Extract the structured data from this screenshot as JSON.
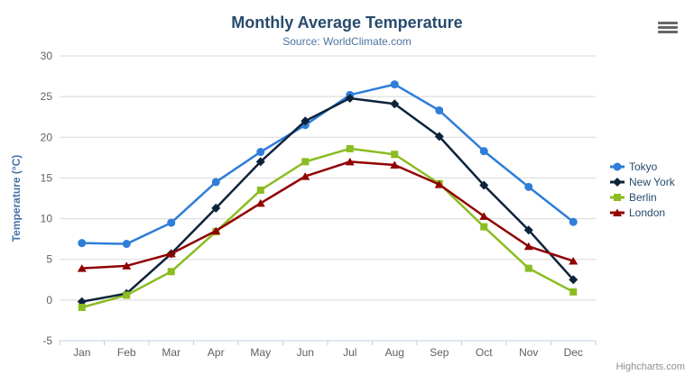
{
  "chart_data": {
    "type": "line",
    "title": "Monthly Average Temperature",
    "subtitle": "Source: WorldClimate.com",
    "categories": [
      "Jan",
      "Feb",
      "Mar",
      "Apr",
      "May",
      "Jun",
      "Jul",
      "Aug",
      "Sep",
      "Oct",
      "Nov",
      "Dec"
    ],
    "xlabel": "",
    "ylabel": "Temperature (°C)",
    "ylim": [
      -5,
      30
    ],
    "ytick_step": 5,
    "grid": true,
    "legend_position": "right-middle",
    "series": [
      {
        "name": "Tokyo",
        "marker": "circle",
        "color": "#2f7ed8",
        "values": [
          7.0,
          6.9,
          9.5,
          14.5,
          18.2,
          21.5,
          25.2,
          26.5,
          23.3,
          18.3,
          13.9,
          9.6
        ]
      },
      {
        "name": "New York",
        "marker": "diamond",
        "color": "#0d233a",
        "values": [
          -0.2,
          0.8,
          5.7,
          11.3,
          17.0,
          22.0,
          24.8,
          24.1,
          20.1,
          14.1,
          8.6,
          2.5
        ]
      },
      {
        "name": "Berlin",
        "marker": "square",
        "color": "#8bbc21",
        "values": [
          -0.9,
          0.6,
          3.5,
          8.4,
          13.5,
          17.0,
          18.6,
          17.9,
          14.3,
          9.0,
          3.9,
          1.0
        ]
      },
      {
        "name": "London",
        "marker": "triangle",
        "color": "#910000",
        "values": [
          3.9,
          4.2,
          5.7,
          8.5,
          11.9,
          15.2,
          17.0,
          16.6,
          14.2,
          10.3,
          6.6,
          4.8
        ]
      }
    ],
    "colors": {
      "title": "#274b6d",
      "subtitle": "#4d759e",
      "axis_title": "#4572a7",
      "tick_label": "#606060",
      "grid": "#d8d8d8",
      "axis_line": "#c0d0e0",
      "legend_text": "#274b6d",
      "credit": "#909090",
      "background": "#ffffff"
    },
    "credit": "Highcharts.com",
    "export_button_icon": "hamburger-menu-icon"
  }
}
